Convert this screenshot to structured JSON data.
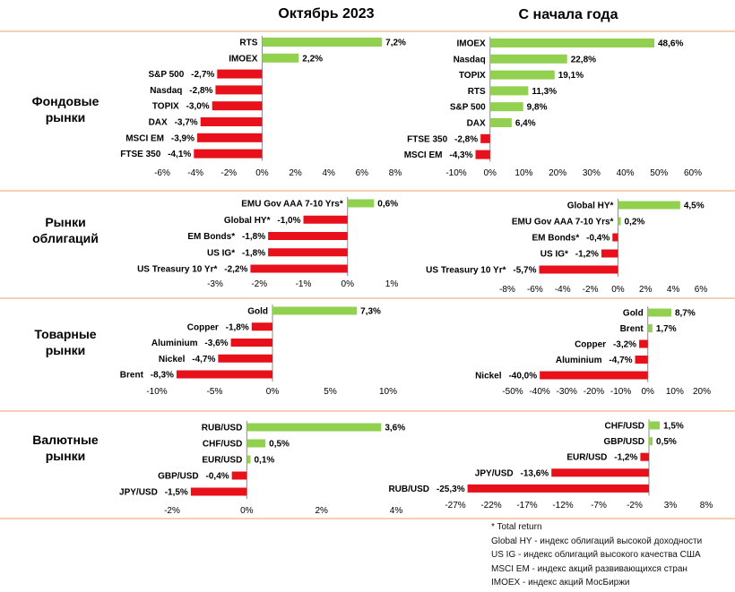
{
  "header": {
    "left_title": "Октябрь 2023",
    "right_title": "С начала года"
  },
  "colors": {
    "positive": "#92d050",
    "negative": "#e8101a",
    "divider": "#f4b183"
  },
  "sections": [
    {
      "title_lines": [
        "Фондовые",
        "рынки"
      ]
    },
    {
      "title_lines": [
        "Рынки",
        "облигаций"
      ]
    },
    {
      "title_lines": [
        "Товарные",
        "рынки"
      ]
    },
    {
      "title_lines": [
        "Валютные",
        "рынки"
      ]
    }
  ],
  "chart_data": [
    {
      "type": "bar",
      "orientation": "horizontal",
      "group": "Фондовые рынки",
      "period": "Октябрь 2023",
      "categories": [
        "RTS",
        "IMOEX",
        "S&P 500",
        "Nasdaq",
        "TOPIX",
        "DAX",
        "MSCI EM",
        "FTSE 350"
      ],
      "values": [
        7.2,
        2.2,
        -2.7,
        -2.8,
        -3.0,
        -3.7,
        -3.9,
        -4.1
      ],
      "labels": [
        "7,2%",
        "2,2%",
        "-2,7%",
        "-2,8%",
        "-3,0%",
        "-3,7%",
        "-3,9%",
        "-4,1%"
      ],
      "xlim": [
        -6,
        8
      ],
      "ticks": [
        -6,
        -4,
        -2,
        0,
        2,
        4,
        6,
        8
      ],
      "tick_labels": [
        "-6%",
        "-4%",
        "-2%",
        "0%",
        "2%",
        "4%",
        "6%",
        "8%"
      ]
    },
    {
      "type": "bar",
      "orientation": "horizontal",
      "group": "Фондовые рынки",
      "period": "С начала года",
      "categories": [
        "IMOEX",
        "Nasdaq",
        "TOPIX",
        "RTS",
        "S&P 500",
        "DAX",
        "FTSE 350",
        "MSCI EM"
      ],
      "values": [
        48.6,
        22.8,
        19.1,
        11.3,
        9.8,
        6.4,
        -2.8,
        -4.3
      ],
      "labels": [
        "48,6%",
        "22,8%",
        "19,1%",
        "11,3%",
        "9,8%",
        "6,4%",
        "-2,8%",
        "-4,3%"
      ],
      "xlim": [
        -10,
        60
      ],
      "ticks": [
        -10,
        0,
        10,
        20,
        30,
        40,
        50,
        60
      ],
      "tick_labels": [
        "-10%",
        "0%",
        "10%",
        "20%",
        "30%",
        "40%",
        "50%",
        "60%"
      ]
    },
    {
      "type": "bar",
      "orientation": "horizontal",
      "group": "Рынки облигаций",
      "period": "Октябрь 2023",
      "categories": [
        "EMU Gov AAA 7-10 Yrs*",
        "Global HY*",
        "EM Bonds*",
        "US IG*",
        "US Treasury 10 Yr*"
      ],
      "values": [
        0.6,
        -1.0,
        -1.8,
        -1.8,
        -2.2
      ],
      "labels": [
        "0,6%",
        "-1,0%",
        "-1,8%",
        "-1,8%",
        "-2,2%"
      ],
      "xlim": [
        -3,
        1
      ],
      "ticks": [
        -3,
        -2,
        -1,
        0,
        1
      ],
      "tick_labels": [
        "-3%",
        "-2%",
        "-1%",
        "0%",
        "1%"
      ]
    },
    {
      "type": "bar",
      "orientation": "horizontal",
      "group": "Рынки облигаций",
      "period": "С начала года",
      "categories": [
        "Global HY*",
        "EMU Gov AAA 7-10 Yrs*",
        "EM Bonds*",
        "US IG*",
        "US Treasury 10 Yr*"
      ],
      "values": [
        4.5,
        0.2,
        -0.4,
        -1.2,
        -5.7
      ],
      "labels": [
        "4,5%",
        "0,2%",
        "-0,4%",
        "-1,2%",
        "-5,7%"
      ],
      "xlim": [
        -8,
        6
      ],
      "ticks": [
        -8,
        -6,
        -4,
        -2,
        0,
        2,
        4,
        6
      ],
      "tick_labels": [
        "-8%",
        "-6%",
        "-4%",
        "-2%",
        "0%",
        "2%",
        "4%",
        "6%"
      ]
    },
    {
      "type": "bar",
      "orientation": "horizontal",
      "group": "Товарные рынки",
      "period": "Октябрь 2023",
      "categories": [
        "Gold",
        "Copper",
        "Aluminium",
        "Nickel",
        "Brent"
      ],
      "values": [
        7.3,
        -1.8,
        -3.6,
        -4.7,
        -8.3
      ],
      "labels": [
        "7,3%",
        "-1,8%",
        "-3,6%",
        "-4,7%",
        "-8,3%"
      ],
      "xlim": [
        -10,
        10
      ],
      "ticks": [
        -10,
        -5,
        0,
        5,
        10
      ],
      "tick_labels": [
        "-10%",
        "-5%",
        "0%",
        "5%",
        "10%"
      ]
    },
    {
      "type": "bar",
      "orientation": "horizontal",
      "group": "Товарные рынки",
      "period": "С начала года",
      "categories": [
        "Gold",
        "Brent",
        "Copper",
        "Aluminium",
        "Nickel"
      ],
      "values": [
        8.7,
        1.7,
        -3.2,
        -4.7,
        -40.0
      ],
      "labels": [
        "8,7%",
        "1,7%",
        "-3,2%",
        "-4,7%",
        "-40,0%"
      ],
      "xlim": [
        -50,
        20
      ],
      "ticks": [
        -50,
        -40,
        -30,
        -20,
        -10,
        0,
        10,
        20
      ],
      "tick_labels": [
        "-50%",
        "-40%",
        "-30%",
        "-20%",
        "-10%",
        "0%",
        "10%",
        "20%"
      ]
    },
    {
      "type": "bar",
      "orientation": "horizontal",
      "group": "Валютные рынки",
      "period": "Октябрь 2023",
      "categories": [
        "RUB/USD",
        "CHF/USD",
        "EUR/USD",
        "GBP/USD",
        "JPY/USD"
      ],
      "values": [
        3.6,
        0.5,
        0.1,
        -0.4,
        -1.5
      ],
      "labels": [
        "3,6%",
        "0,5%",
        "0,1%",
        "-0,4%",
        "-1,5%"
      ],
      "xlim": [
        -2,
        4
      ],
      "ticks": [
        -2,
        0,
        2,
        4
      ],
      "tick_labels": [
        "-2%",
        "0%",
        "2%",
        "4%"
      ]
    },
    {
      "type": "bar",
      "orientation": "horizontal",
      "group": "Валютные рынки",
      "period": "С начала года",
      "categories": [
        "CHF/USD",
        "GBP/USD",
        "EUR/USD",
        "JPY/USD",
        "RUB/USD"
      ],
      "values": [
        1.5,
        0.5,
        -1.2,
        -13.6,
        -25.3
      ],
      "labels": [
        "1,5%",
        "0,5%",
        "-1,2%",
        "-13,6%",
        "-25,3%"
      ],
      "xlim": [
        -27,
        8
      ],
      "ticks": [
        -27,
        -22,
        -17,
        -12,
        -7,
        -2,
        3,
        8
      ],
      "tick_labels": [
        "-27%",
        "-22%",
        "-17%",
        "-12%",
        "-7%",
        "-2%",
        "3%",
        "8%"
      ]
    }
  ],
  "footnotes": [
    "* Total return",
    "Global HY - индекс облигаций высокой доходности",
    "US IG - индекс облигаций высокого качества США",
    "MSCI EM - индекс акций развивающихся стран",
    "IMOEX - индекс акций МосБиржи"
  ]
}
